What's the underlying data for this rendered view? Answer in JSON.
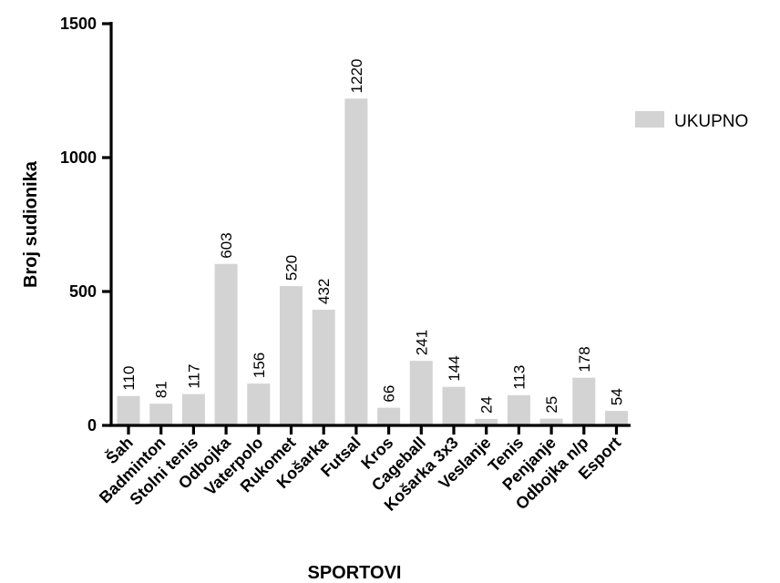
{
  "chart_data": {
    "type": "bar",
    "title": "",
    "xlabel": "SPORTOVI",
    "ylabel": "Broj sudionika",
    "ylim": [
      0,
      1500
    ],
    "yticks": [
      0,
      500,
      1000,
      1500
    ],
    "grid": false,
    "legend_position": "right",
    "categories": [
      "Šah",
      "Badminton",
      "Stolni tenis",
      "Odbojka",
      "Vaterpolo",
      "Rukomet",
      "Košarka",
      "Futsal",
      "Kros",
      "Cageball",
      "Košarka 3x3",
      "Veslanje",
      "Tenis",
      "Penjanje",
      "Odbojka n/p",
      "Esport"
    ],
    "series": [
      {
        "name": "UKUPNO",
        "color": "#d3d3d3",
        "values": [
          110,
          81,
          117,
          603,
          156,
          520,
          432,
          1220,
          66,
          241,
          144,
          24,
          113,
          25,
          178,
          54
        ]
      }
    ]
  }
}
